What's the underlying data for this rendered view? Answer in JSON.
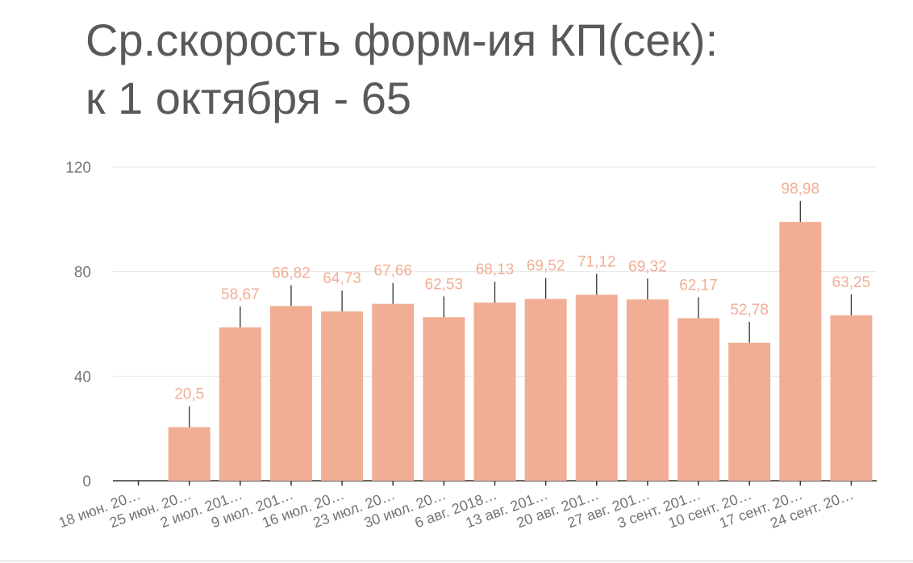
{
  "chart_data": {
    "type": "bar",
    "title_lines": [
      "Ср.скорость форм-ия КП(сек):",
      "к 1 октября - 65"
    ],
    "categories": [
      "18 июн. 20…",
      "25 июн. 20…",
      "2 июл. 201…",
      "9 июл. 201…",
      "16 июл. 20…",
      "23 июл. 20…",
      "30 июл. 20…",
      "6 авг. 2018…",
      "13 авг. 201…",
      "20 авг. 201…",
      "27 авг. 201…",
      "3 сент. 201…",
      "10 сент. 20…",
      "17 сент. 20…",
      "24 сент. 20…"
    ],
    "values": [
      null,
      20.5,
      58.67,
      66.82,
      64.73,
      67.66,
      62.53,
      68.13,
      69.52,
      71.12,
      69.32,
      62.17,
      52.78,
      98.98,
      63.25
    ],
    "value_labels": [
      "",
      "20,5",
      "58,67",
      "66,82",
      "64,73",
      "67,66",
      "62,53",
      "68,13",
      "69,52",
      "71,12",
      "69,32",
      "62,17",
      "52,78",
      "98,98",
      "63,25"
    ],
    "error_bar": 8,
    "ylim": [
      0,
      120
    ],
    "yticks": [
      0,
      40,
      80,
      120
    ],
    "bar_color": "#F2AE95",
    "label_color": "#F2AE95",
    "grid": true,
    "xlabel": "",
    "ylabel": ""
  }
}
